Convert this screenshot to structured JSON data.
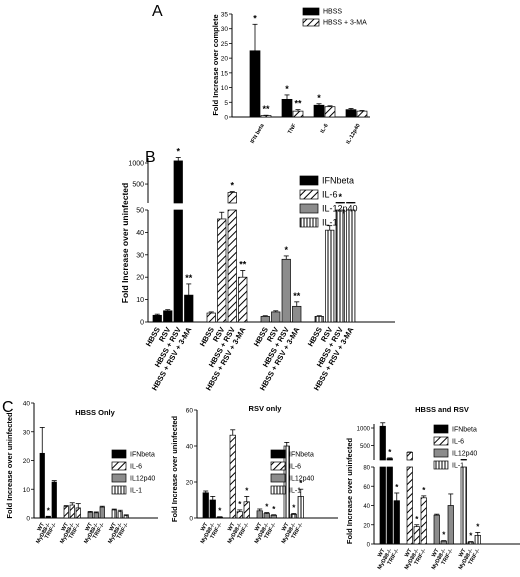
{
  "panels": {
    "A": {
      "letter": "A"
    },
    "B": {
      "letter": "B"
    },
    "C": {
      "letter": "C"
    }
  },
  "chart_data": [
    {
      "id": "A",
      "type": "bar",
      "ylabel": "Fold Increase over complete",
      "ylim": [
        0,
        35
      ],
      "yticks": [
        0,
        5,
        10,
        15,
        20,
        25,
        30,
        35
      ],
      "categories": [
        "IFN beta",
        "TNF",
        "IL-6",
        "IL-12p40"
      ],
      "series": [
        {
          "name": "HBSS",
          "values": [
            22.5,
            6,
            4,
            2.5
          ],
          "errors": [
            9,
            1.5,
            0.5,
            0.4
          ],
          "pattern": "solid"
        },
        {
          "name": "HBSS + 3-MA",
          "values": [
            0.5,
            2,
            3.5,
            2
          ],
          "errors": [
            0.1,
            0.5,
            0.3,
            0.2
          ],
          "pattern": "hatch"
        }
      ],
      "annotations": [
        {
          "category": "IFN beta",
          "series": 0,
          "text": "*"
        },
        {
          "category": "IFN beta",
          "series": 1,
          "text": "**"
        },
        {
          "category": "TNF",
          "series": 0,
          "text": "*"
        },
        {
          "category": "TNF",
          "series": 1,
          "text": "**"
        },
        {
          "category": "IL-6",
          "series": 0,
          "text": "*"
        }
      ],
      "legend": "top-right"
    },
    {
      "id": "B",
      "type": "bar",
      "ylabel": "Fold Increase over uninfected",
      "broken_axis": {
        "lower": [
          0,
          50
        ],
        "upper": [
          50,
          1000
        ]
      },
      "yticks_lower": [
        0,
        10,
        20,
        30,
        40,
        50
      ],
      "yticks_upper": [
        500,
        1000
      ],
      "groups": [
        {
          "name": "IFNbeta",
          "pattern": "solid",
          "categories": [
            "HBSS",
            "RSV",
            "HBSS + RSV",
            "HBSS + RSV + 3-MA"
          ],
          "values": [
            3,
            5,
            1050,
            12
          ],
          "errors": [
            0.5,
            0.5,
            80,
            5
          ],
          "stars": [
            "",
            "",
            "*",
            "**"
          ]
        },
        {
          "name": "IL-6",
          "pattern": "hatch",
          "categories": [
            "HBSS",
            "RSV",
            "HBSS + RSV",
            "HBSS + RSV + 3-MA"
          ],
          "values": [
            4,
            46,
            300,
            20
          ],
          "errors": [
            0.5,
            3,
            20,
            3
          ],
          "stars": [
            "",
            "",
            "*",
            "**"
          ]
        },
        {
          "name": "IL-12p40",
          "pattern": "grey",
          "categories": [
            "HBSS",
            "RSV",
            "HBSS + RSV",
            "HBSS + RSV + 3-MA"
          ],
          "values": [
            2.5,
            4.5,
            28,
            7
          ],
          "errors": [
            0.3,
            0.5,
            1.5,
            2
          ],
          "stars": [
            "",
            "",
            "*",
            "**"
          ]
        },
        {
          "name": "IL-1",
          "pattern": "vlines",
          "categories": [
            "HBSS",
            "RSV",
            "HBSS + RSV",
            "HBSS + RSV + 3-MA"
          ],
          "values": [
            2.5,
            41,
            53,
            54
          ],
          "errors": [
            0.3,
            2,
            1,
            1
          ],
          "stars": [
            "",
            "",
            "*",
            ""
          ]
        }
      ],
      "legend": [
        "IFNbeta",
        "IL-6",
        "IL-12p40",
        "IL-1"
      ],
      "legend_position": "top-right"
    },
    {
      "id": "C1",
      "type": "bar",
      "title": "HBSS Only",
      "ylabel": "Fold Increase over uninfected",
      "ylim": [
        0,
        40
      ],
      "yticks": [
        0,
        10,
        20,
        30,
        40
      ],
      "categories": [
        "WT",
        "MyD88-/-",
        "TRIF-/-"
      ],
      "series": [
        {
          "name": "IFNbeta",
          "pattern": "solid",
          "values": [
            22.5,
            0.5,
            12.5
          ],
          "errors": [
            9,
            0.1,
            0.5
          ]
        },
        {
          "name": "IL-6",
          "pattern": "hatch",
          "values": [
            4,
            4.5,
            3.5
          ],
          "errors": [
            0.3,
            0.8,
            1.5
          ]
        },
        {
          "name": "IL12p40",
          "pattern": "grey",
          "values": [
            2,
            1.8,
            3.8
          ],
          "errors": [
            0.3,
            0.3,
            0.3
          ]
        },
        {
          "name": "IL-1",
          "pattern": "vlines",
          "values": [
            2.8,
            2.2,
            0.8
          ],
          "errors": [
            0.3,
            0.5,
            0.3
          ]
        }
      ],
      "annotations": [
        {
          "series": "IFNbeta",
          "category": "MyD88-/-",
          "text": "*"
        }
      ],
      "legend": "right"
    },
    {
      "id": "C2",
      "type": "bar",
      "title": "RSV only",
      "ylabel": "Fold Increase over uninfected",
      "ylim": [
        0,
        60
      ],
      "yticks": [
        0,
        20,
        40,
        60
      ],
      "categories": [
        "WT",
        "MyD88-/-",
        "TRIF-/-"
      ],
      "series": [
        {
          "name": "IFNbeta",
          "pattern": "solid",
          "values": [
            14,
            10,
            0.5
          ],
          "errors": [
            1,
            2,
            0.2
          ]
        },
        {
          "name": "IL-6",
          "pattern": "hatch",
          "values": [
            46,
            3.5,
            9
          ],
          "errors": [
            3,
            1,
            3
          ]
        },
        {
          "name": "IL12p40",
          "pattern": "grey",
          "values": [
            4,
            2.5,
            1.5
          ],
          "errors": [
            1,
            0.5,
            0.3
          ]
        },
        {
          "name": "IL-1",
          "pattern": "vlines",
          "values": [
            40,
            2,
            12
          ],
          "errors": [
            2,
            0.5,
            4
          ]
        }
      ],
      "annotations": [
        {
          "series": "IFNbeta",
          "category": "TRIF-/-",
          "text": "*"
        },
        {
          "series": "IL-6",
          "category": "MyD88-/-",
          "text": "*"
        },
        {
          "series": "IL-6",
          "category": "TRIF-/-",
          "text": "*"
        },
        {
          "series": "IL12p40",
          "category": "MyD88-/-",
          "text": "*"
        },
        {
          "series": "IL12p40",
          "category": "TRIF-/-",
          "text": "*"
        },
        {
          "series": "IL-1",
          "category": "MyD88-/-",
          "text": "*"
        },
        {
          "series": "IL-1",
          "category": "TRIF-/-",
          "text": "*"
        }
      ],
      "legend": "right"
    },
    {
      "id": "C3",
      "type": "bar",
      "title": "HBSS and RSV",
      "ylabel": "Fold Increase over uninfected",
      "broken_axis": {
        "lower": [
          0,
          80
        ],
        "upper": [
          80,
          1000
        ]
      },
      "yticks_lower": [
        0,
        20,
        40,
        60,
        80
      ],
      "yticks_upper": [
        500,
        1000
      ],
      "categories": [
        "WT",
        "MyD88-/-",
        "TRIF-/-"
      ],
      "series": [
        {
          "name": "IFNbeta",
          "pattern": "solid",
          "values": [
            1050,
            120,
            45
          ],
          "errors": [
            100,
            20,
            8
          ]
        },
        {
          "name": "IL-6",
          "pattern": "hatch",
          "values": [
            300,
            18,
            48
          ],
          "errors": [
            10,
            2,
            2
          ]
        },
        {
          "name": "IL12p40",
          "pattern": "grey",
          "values": [
            30,
            3,
            40
          ],
          "errors": [
            1,
            0.5,
            12
          ]
        },
        {
          "name": "IL-1",
          "pattern": "vlines",
          "values": [
            85,
            2,
            9
          ],
          "errors": [
            3,
            0.5,
            3
          ]
        }
      ],
      "annotations": [
        {
          "series": "IFNbeta",
          "category": "MyD88-/-",
          "text": "*"
        },
        {
          "series": "IFNbeta",
          "category": "TRIF-/-",
          "text": "*"
        },
        {
          "series": "IL-6",
          "category": "MyD88-/-",
          "text": "*"
        },
        {
          "series": "IL-6",
          "category": "TRIF-/-",
          "text": "*"
        },
        {
          "series": "IL12p40",
          "category": "MyD88-/-",
          "text": "*"
        },
        {
          "series": "IL-1",
          "category": "MyD88-/-",
          "text": "*"
        },
        {
          "series": "IL-1",
          "category": "TRIF-/-",
          "text": "*"
        }
      ],
      "legend": "top-right"
    }
  ]
}
